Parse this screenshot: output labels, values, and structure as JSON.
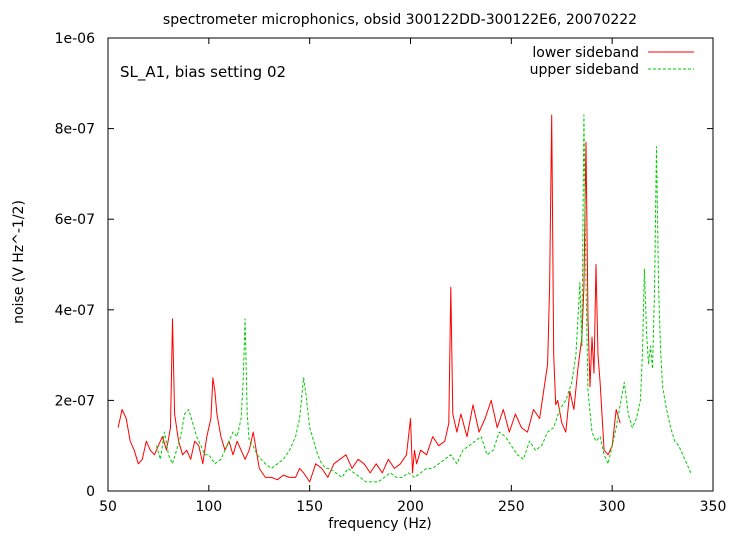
{
  "chart_data": {
    "type": "line",
    "title": "spectrometer microphonics, obsid 300122DD-300122E6, 20070222",
    "annotation": "SL_A1, bias setting 02",
    "xlabel": "frequency (Hz)",
    "ylabel": "noise (V Hz^-1/2)",
    "xlim": [
      50,
      350
    ],
    "ylim": [
      0,
      1e-06
    ],
    "x_ticks": [
      50,
      100,
      150,
      200,
      250,
      300,
      350
    ],
    "x_tick_labels": [
      "50",
      "100",
      "150",
      "200",
      "250",
      "300",
      "350"
    ],
    "y_ticks": [
      0,
      2e-07,
      4e-07,
      6e-07,
      8e-07,
      1e-06
    ],
    "y_tick_labels": [
      "0",
      "2e-07",
      "4e-07",
      "6e-07",
      "8e-07",
      "1e-06"
    ],
    "grid": false,
    "legend_position": "top-right",
    "series": [
      {
        "name": "lower sideband",
        "color": "#ff0000",
        "dash": "solid",
        "x": [
          55,
          57,
          59,
          61,
          63,
          65,
          67,
          69,
          71,
          73,
          75,
          77,
          79,
          81,
          82,
          83,
          85,
          87,
          89,
          91,
          93,
          95,
          97,
          99,
          101,
          102,
          103,
          104,
          106,
          108,
          110,
          112,
          114,
          116,
          118,
          120,
          122,
          125,
          128,
          131,
          134,
          137,
          140,
          143,
          145,
          147,
          150,
          153,
          156,
          159,
          162,
          165,
          168,
          171,
          174,
          177,
          180,
          183,
          186,
          189,
          192,
          195,
          198,
          200,
          201,
          202,
          203,
          205,
          208,
          211,
          214,
          217,
          219,
          220,
          221,
          223,
          225,
          228,
          231,
          234,
          237,
          240,
          243,
          246,
          249,
          252,
          255,
          258,
          261,
          264,
          266,
          268,
          269,
          270,
          271,
          272,
          273,
          275,
          277,
          279,
          281,
          283,
          285,
          286,
          287,
          288,
          289,
          290,
          291,
          292,
          293,
          294,
          296,
          298,
          300,
          302,
          304
        ],
        "y": [
          1.4e-07,
          1.8e-07,
          1.6e-07,
          1.1e-07,
          9e-08,
          6e-08,
          7e-08,
          1.1e-07,
          9e-08,
          8e-08,
          1e-07,
          1.2e-07,
          9e-08,
          1.4e-07,
          3.8e-07,
          1.7e-07,
          1.1e-07,
          8e-08,
          9e-08,
          7e-08,
          1.1e-07,
          1e-07,
          6e-08,
          1.2e-07,
          1.6e-07,
          2.5e-07,
          2.2e-07,
          1.7e-07,
          1.2e-07,
          9e-08,
          1.1e-07,
          8e-08,
          1.1e-07,
          9e-08,
          7e-08,
          9e-08,
          1.3e-07,
          5e-08,
          3e-08,
          3e-08,
          2.5e-08,
          3.5e-08,
          3e-08,
          3e-08,
          5e-08,
          4e-08,
          2e-08,
          6e-08,
          5e-08,
          3e-08,
          6e-08,
          7e-08,
          8e-08,
          5e-08,
          7e-08,
          6e-08,
          4e-08,
          6e-08,
          4e-08,
          7e-08,
          5e-08,
          6e-08,
          8e-08,
          1.6e-07,
          4e-08,
          9e-08,
          6e-08,
          9e-08,
          8e-08,
          1.2e-07,
          1e-07,
          1.1e-07,
          1.5e-07,
          4.5e-07,
          1.7e-07,
          1.3e-07,
          1.7e-07,
          1.2e-07,
          1.9e-07,
          1.3e-07,
          1.6e-07,
          2e-07,
          1.4e-07,
          1.8e-07,
          1.3e-07,
          1.7e-07,
          1.4e-07,
          1.3e-07,
          1.8e-07,
          1.6e-07,
          2.2e-07,
          2.8e-07,
          4.5e-07,
          8.3e-07,
          3e-07,
          1.9e-07,
          2e-07,
          1.5e-07,
          1.3e-07,
          2.2e-07,
          1.8e-07,
          2.7e-07,
          3.4e-07,
          4.5e-07,
          7.7e-07,
          3.8e-07,
          2.3e-07,
          3.4e-07,
          2.6e-07,
          5e-07,
          3e-07,
          2.4e-07,
          9e-08,
          8e-08,
          1e-07,
          1.8e-07,
          1.5e-07
        ]
      },
      {
        "name": "upper sideband",
        "color": "#00cc00",
        "dash": "dashed",
        "x": [
          74,
          76,
          78,
          80,
          82,
          84,
          86,
          88,
          90,
          92,
          94,
          96,
          98,
          100,
          103,
          106,
          109,
          112,
          114,
          116,
          117,
          118,
          119,
          120,
          122,
          124,
          126,
          128,
          131,
          134,
          137,
          140,
          143,
          145,
          147,
          148,
          150,
          152,
          154,
          156,
          158,
          160,
          163,
          166,
          169,
          172,
          175,
          178,
          181,
          184,
          187,
          190,
          193,
          196,
          199,
          202,
          205,
          208,
          211,
          214,
          217,
          220,
          223,
          226,
          229,
          232,
          235,
          238,
          241,
          244,
          247,
          250,
          253,
          256,
          259,
          262,
          265,
          268,
          271,
          274,
          277,
          280,
          282,
          283,
          284,
          285,
          286,
          287,
          288,
          290,
          292,
          294,
          296,
          298,
          300,
          302,
          304,
          306,
          308,
          310,
          312,
          314,
          315,
          316,
          317,
          318,
          319,
          320,
          321,
          322,
          323,
          324,
          325,
          327,
          329,
          331,
          333,
          335,
          337,
          339
        ],
        "y": [
          1e-07,
          7e-08,
          1.3e-07,
          8e-08,
          6e-08,
          9e-08,
          1.2e-07,
          1.7e-07,
          1.8e-07,
          1.5e-07,
          1.2e-07,
          1e-07,
          8e-08,
          8e-08,
          6e-08,
          7e-08,
          1e-07,
          1.3e-07,
          1.2e-07,
          1.6e-07,
          2.4e-07,
          3.8e-07,
          1.7e-07,
          1.1e-07,
          1e-07,
          8e-08,
          7e-08,
          6e-08,
          5e-08,
          6e-08,
          7e-08,
          9e-08,
          1.2e-07,
          1.6e-07,
          2.5e-07,
          2.2e-07,
          1.4e-07,
          1.1e-07,
          8e-08,
          6e-08,
          5e-08,
          5e-08,
          4e-08,
          3e-08,
          5e-08,
          4e-08,
          3e-08,
          2e-08,
          2e-08,
          2e-08,
          3e-08,
          4e-08,
          3e-08,
          3e-08,
          4e-08,
          3e-08,
          4e-08,
          5e-08,
          5e-08,
          6e-08,
          7e-08,
          8e-08,
          6e-08,
          9e-08,
          1e-07,
          1.1e-07,
          1.2e-07,
          8e-08,
          9e-08,
          1.3e-07,
          1.2e-07,
          1e-07,
          8e-08,
          7e-08,
          1.1e-07,
          9e-08,
          1e-07,
          1.3e-07,
          1.4e-07,
          1.8e-07,
          2e-07,
          2.4e-07,
          3e-07,
          3.8e-07,
          4.6e-07,
          3.2e-07,
          8.3e-07,
          4.6e-07,
          2.2e-07,
          1.3e-07,
          1.1e-07,
          1.2e-07,
          8e-08,
          6e-08,
          1e-07,
          1.4e-07,
          1.9e-07,
          2.4e-07,
          1.7e-07,
          1.4e-07,
          1.6e-07,
          2e-07,
          3e-07,
          4.9e-07,
          3.5e-07,
          2.8e-07,
          3.2e-07,
          2.7e-07,
          4.4e-07,
          7.6e-07,
          4.5e-07,
          3.1e-07,
          2.3e-07,
          1.8e-07,
          1.4e-07,
          1.1e-07,
          1e-07,
          8e-08,
          6e-08,
          4e-08
        ]
      }
    ]
  }
}
